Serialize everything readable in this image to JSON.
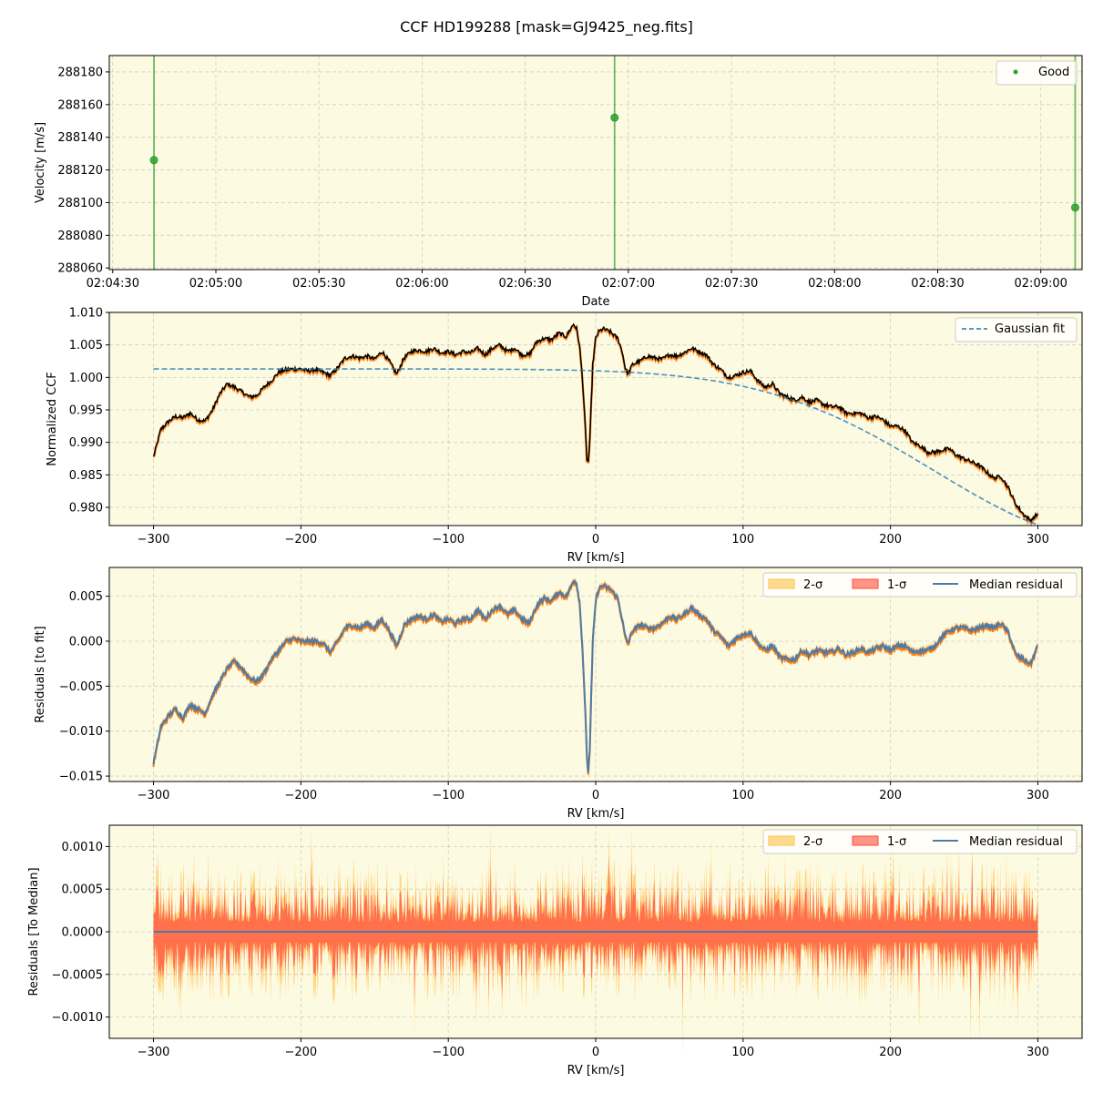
{
  "figure_title": "CCF HD199288 [mask=GJ9425_neg.fits]",
  "colors": {
    "plot_bg": "#fdfae2",
    "grid": "#b0b0b0",
    "good": "#2ca02c",
    "fit": "#1f77b4",
    "ccf_line": "#000000",
    "ccf_shadow": "#ff7f0e",
    "median_residual": "#4f7ba6",
    "band_2sigma": "#ffc34d",
    "band_1sigma": "#ff4d3a"
  },
  "chart_data": [
    {
      "type": "scatter",
      "ylabel": "Velocity [m/s]",
      "xlabel": "Date",
      "xlim": [
        "02:04:29",
        "02:09:12"
      ],
      "ylim": [
        288059,
        288190
      ],
      "xticks": [
        "02:04:30",
        "02:05:00",
        "02:05:30",
        "02:06:00",
        "02:06:30",
        "02:07:00",
        "02:07:30",
        "02:08:00",
        "02:08:30",
        "02:09:00"
      ],
      "yticks": [
        288060,
        288080,
        288100,
        288120,
        288140,
        288160,
        288180
      ],
      "grid": true,
      "legend": {
        "position": "top-right",
        "entries": [
          "Good"
        ]
      },
      "series": [
        {
          "name": "Good",
          "x": [
            "02:04:42",
            "02:06:56",
            "02:09:10"
          ],
          "y": [
            288126,
            288152,
            288097
          ],
          "error_bars": "extend beyond axis"
        }
      ]
    },
    {
      "type": "line",
      "ylabel": "Normalized CCF",
      "xlabel": "RV [km/s]",
      "xlim": [
        -330,
        330
      ],
      "ylim": [
        0.9772,
        1.01
      ],
      "xticks": [
        -300,
        -200,
        -100,
        0,
        100,
        200,
        300
      ],
      "xtick_labels": [
        "−300",
        "−200",
        "−100",
        "0",
        "100",
        "200",
        "300"
      ],
      "yticks": [
        0.98,
        0.985,
        0.99,
        0.995,
        1.0,
        1.005,
        1.01
      ],
      "ytick_labels": [
        "0.980",
        "0.985",
        "0.990",
        "0.995",
        "1.000",
        "1.005",
        "1.010"
      ],
      "grid": true,
      "legend": {
        "position": "top-right",
        "entries": [
          "Gaussian fit"
        ]
      },
      "ccf_points": [
        [
          -300,
          0.9878
        ],
        [
          -295,
          0.992
        ],
        [
          -290,
          0.9932
        ],
        [
          -285,
          0.994
        ],
        [
          -280,
          0.9938
        ],
        [
          -275,
          0.9945
        ],
        [
          -270,
          0.9935
        ],
        [
          -265,
          0.9933
        ],
        [
          -260,
          0.995
        ],
        [
          -255,
          0.9975
        ],
        [
          -250,
          0.999
        ],
        [
          -245,
          0.9985
        ],
        [
          -240,
          0.9978
        ],
        [
          -235,
          0.997
        ],
        [
          -230,
          0.9972
        ],
        [
          -225,
          0.9985
        ],
        [
          -220,
          0.9995
        ],
        [
          -215,
          1.0008
        ],
        [
          -210,
          1.0012
        ],
        [
          -205,
          1.0013
        ],
        [
          -200,
          1.0013
        ],
        [
          -195,
          1.001
        ],
        [
          -190,
          1.0012
        ],
        [
          -185,
          1.0008
        ],
        [
          -180,
          1.0003
        ],
        [
          -175,
          1.0015
        ],
        [
          -170,
          1.003
        ],
        [
          -165,
          1.0033
        ],
        [
          -160,
          1.003
        ],
        [
          -155,
          1.0033
        ],
        [
          -150,
          1.0028
        ],
        [
          -145,
          1.004
        ],
        [
          -140,
          1.0025
        ],
        [
          -135,
          1.0005
        ],
        [
          -130,
          1.003
        ],
        [
          -125,
          1.004
        ],
        [
          -120,
          1.0042
        ],
        [
          -115,
          1.004
        ],
        [
          -110,
          1.0045
        ],
        [
          -105,
          1.0038
        ],
        [
          -100,
          1.004
        ],
        [
          -95,
          1.0035
        ],
        [
          -90,
          1.004
        ],
        [
          -85,
          1.0038
        ],
        [
          -80,
          1.0045
        ],
        [
          -75,
          1.0035
        ],
        [
          -70,
          1.0045
        ],
        [
          -65,
          1.005
        ],
        [
          -60,
          1.004
        ],
        [
          -55,
          1.0045
        ],
        [
          -50,
          1.0035
        ],
        [
          -45,
          1.0035
        ],
        [
          -40,
          1.0055
        ],
        [
          -35,
          1.006
        ],
        [
          -30,
          1.0058
        ],
        [
          -25,
          1.0068
        ],
        [
          -20,
          1.0063
        ],
        [
          -17,
          1.0075
        ],
        [
          -15,
          1.0082
        ],
        [
          -13,
          1.0075
        ],
        [
          -11,
          1.005
        ],
        [
          -9,
          1.0
        ],
        [
          -7,
          0.992
        ],
        [
          -6,
          0.9875
        ],
        [
          -5,
          0.987
        ],
        [
          -4,
          0.99
        ],
        [
          -3,
          0.996
        ],
        [
          -2,
          1.002
        ],
        [
          0,
          1.006
        ],
        [
          2,
          1.007
        ],
        [
          5,
          1.0075
        ],
        [
          10,
          1.007
        ],
        [
          15,
          1.006
        ],
        [
          18,
          1.004
        ],
        [
          20,
          1.0015
        ],
        [
          22,
          1.0005
        ],
        [
          25,
          1.002
        ],
        [
          30,
          1.0025
        ],
        [
          35,
          1.0033
        ],
        [
          40,
          1.003
        ],
        [
          45,
          1.0028
        ],
        [
          50,
          1.0035
        ],
        [
          55,
          1.0033
        ],
        [
          60,
          1.0038
        ],
        [
          65,
          1.0045
        ],
        [
          70,
          1.004
        ],
        [
          75,
          1.0035
        ],
        [
          80,
          1.002
        ],
        [
          85,
          1.0012
        ],
        [
          90,
          1.0
        ],
        [
          95,
          1.0003
        ],
        [
          100,
          1.0008
        ],
        [
          105,
          1.001
        ],
        [
          110,
          0.9995
        ],
        [
          115,
          0.9985
        ],
        [
          120,
          0.999
        ],
        [
          125,
          0.9975
        ],
        [
          130,
          0.997
        ],
        [
          135,
          0.9965
        ],
        [
          140,
          0.997
        ],
        [
          145,
          0.9962
        ],
        [
          150,
          0.9965
        ],
        [
          155,
          0.9958
        ],
        [
          160,
          0.9955
        ],
        [
          165,
          0.9955
        ],
        [
          170,
          0.9945
        ],
        [
          175,
          0.9945
        ],
        [
          180,
          0.9945
        ],
        [
          185,
          0.9938
        ],
        [
          190,
          0.994
        ],
        [
          195,
          0.9935
        ],
        [
          200,
          0.9925
        ],
        [
          205,
          0.9925
        ],
        [
          210,
          0.9918
        ],
        [
          215,
          0.99
        ],
        [
          220,
          0.9895
        ],
        [
          225,
          0.9885
        ],
        [
          230,
          0.9885
        ],
        [
          235,
          0.9888
        ],
        [
          240,
          0.989
        ],
        [
          245,
          0.988
        ],
        [
          250,
          0.9875
        ],
        [
          255,
          0.987
        ],
        [
          260,
          0.9865
        ],
        [
          265,
          0.9855
        ],
        [
          270,
          0.9845
        ],
        [
          275,
          0.9848
        ],
        [
          280,
          0.983
        ],
        [
          285,
          0.9805
        ],
        [
          290,
          0.979
        ],
        [
          295,
          0.978
        ],
        [
          300,
          0.979
        ]
      ],
      "gaussian_fit": {
        "baseline": 1.0013,
        "amplitude": -0.0259,
        "center_kms": 345,
        "sigma_kms": 115
      }
    },
    {
      "type": "line",
      "ylabel": "Residuals [to fit]",
      "xlabel": "RV [km/s]",
      "xlim": [
        -330,
        330
      ],
      "ylim": [
        -0.0156,
        0.0082
      ],
      "xticks": [
        -300,
        -200,
        -100,
        0,
        100,
        200,
        300
      ],
      "xtick_labels": [
        "−300",
        "−200",
        "−100",
        "0",
        "100",
        "200",
        "300"
      ],
      "yticks": [
        -0.015,
        -0.01,
        -0.005,
        0.0,
        0.005
      ],
      "ytick_labels": [
        "−0.015",
        "−0.010",
        "−0.005",
        "0.000",
        "0.005"
      ],
      "grid": true,
      "legend": {
        "position": "top-right",
        "entries": [
          "2-σ",
          "1-σ",
          "Median residual"
        ]
      },
      "residual_points": [
        [
          -300,
          -0.0135
        ],
        [
          -295,
          -0.0095
        ],
        [
          -290,
          -0.0083
        ],
        [
          -285,
          -0.0075
        ],
        [
          -280,
          -0.0085
        ],
        [
          -275,
          -0.007
        ],
        [
          -270,
          -0.0075
        ],
        [
          -265,
          -0.008
        ],
        [
          -260,
          -0.006
        ],
        [
          -255,
          -0.0045
        ],
        [
          -250,
          -0.003
        ],
        [
          -245,
          -0.0022
        ],
        [
          -240,
          -0.003
        ],
        [
          -235,
          -0.004
        ],
        [
          -230,
          -0.0045
        ],
        [
          -225,
          -0.0035
        ],
        [
          -220,
          -0.002
        ],
        [
          -215,
          -0.001
        ],
        [
          -210,
          0.0
        ],
        [
          -205,
          0.0003
        ],
        [
          -200,
          0.0
        ],
        [
          -195,
          0.0
        ],
        [
          -190,
          0.0
        ],
        [
          -185,
          -0.0002
        ],
        [
          -180,
          -0.0012
        ],
        [
          -175,
          0.0
        ],
        [
          -170,
          0.0015
        ],
        [
          -165,
          0.0018
        ],
        [
          -160,
          0.0015
        ],
        [
          -155,
          0.002
        ],
        [
          -150,
          0.0015
        ],
        [
          -145,
          0.0025
        ],
        [
          -140,
          0.0012
        ],
        [
          -135,
          -0.0005
        ],
        [
          -130,
          0.0018
        ],
        [
          -125,
          0.0025
        ],
        [
          -120,
          0.0028
        ],
        [
          -115,
          0.0025
        ],
        [
          -110,
          0.003
        ],
        [
          -105,
          0.0022
        ],
        [
          -100,
          0.0025
        ],
        [
          -95,
          0.002
        ],
        [
          -90,
          0.0025
        ],
        [
          -85,
          0.0025
        ],
        [
          -80,
          0.0035
        ],
        [
          -75,
          0.0025
        ],
        [
          -70,
          0.0035
        ],
        [
          -65,
          0.004
        ],
        [
          -60,
          0.003
        ],
        [
          -55,
          0.0035
        ],
        [
          -50,
          0.0025
        ],
        [
          -45,
          0.002
        ],
        [
          -40,
          0.004
        ],
        [
          -35,
          0.0048
        ],
        [
          -30,
          0.0045
        ],
        [
          -25,
          0.0055
        ],
        [
          -20,
          0.005
        ],
        [
          -17,
          0.006
        ],
        [
          -15,
          0.0068
        ],
        [
          -13,
          0.0065
        ],
        [
          -11,
          0.0045
        ],
        [
          -9,
          -0.0005
        ],
        [
          -7,
          -0.008
        ],
        [
          -6,
          -0.0128
        ],
        [
          -5,
          -0.0145
        ],
        [
          -4,
          -0.012
        ],
        [
          -3,
          -0.006
        ],
        [
          -2,
          0.0
        ],
        [
          0,
          0.0045
        ],
        [
          2,
          0.0058
        ],
        [
          5,
          0.0062
        ],
        [
          10,
          0.0058
        ],
        [
          15,
          0.0048
        ],
        [
          18,
          0.0025
        ],
        [
          20,
          0.0005
        ],
        [
          22,
          -0.0002
        ],
        [
          25,
          0.0012
        ],
        [
          30,
          0.0018
        ],
        [
          35,
          0.0015
        ],
        [
          40,
          0.0015
        ],
        [
          45,
          0.002
        ],
        [
          50,
          0.0028
        ],
        [
          55,
          0.0025
        ],
        [
          60,
          0.003
        ],
        [
          65,
          0.0038
        ],
        [
          70,
          0.003
        ],
        [
          75,
          0.0025
        ],
        [
          80,
          0.0012
        ],
        [
          85,
          0.0005
        ],
        [
          90,
          -0.0005
        ],
        [
          95,
          0.0003
        ],
        [
          100,
          0.0008
        ],
        [
          105,
          0.001
        ],
        [
          110,
          -0.0002
        ],
        [
          115,
          -0.001
        ],
        [
          120,
          -0.0005
        ],
        [
          125,
          -0.0018
        ],
        [
          130,
          -0.002
        ],
        [
          135,
          -0.002
        ],
        [
          140,
          -0.001
        ],
        [
          145,
          -0.0015
        ],
        [
          150,
          -0.001
        ],
        [
          155,
          -0.0012
        ],
        [
          160,
          -0.0012
        ],
        [
          165,
          -0.0008
        ],
        [
          170,
          -0.0015
        ],
        [
          175,
          -0.0012
        ],
        [
          180,
          -0.0008
        ],
        [
          185,
          -0.0012
        ],
        [
          190,
          -0.0008
        ],
        [
          195,
          -0.0005
        ],
        [
          200,
          -0.001
        ],
        [
          205,
          -0.0005
        ],
        [
          210,
          -0.0005
        ],
        [
          215,
          -0.0012
        ],
        [
          220,
          -0.001
        ],
        [
          225,
          -0.001
        ],
        [
          230,
          -0.0005
        ],
        [
          235,
          0.0005
        ],
        [
          240,
          0.0012
        ],
        [
          245,
          0.0015
        ],
        [
          250,
          0.0015
        ],
        [
          255,
          0.0012
        ],
        [
          260,
          0.0015
        ],
        [
          265,
          0.0018
        ],
        [
          270,
          0.0015
        ],
        [
          275,
          0.002
        ],
        [
          280,
          0.001
        ],
        [
          285,
          -0.0015
        ],
        [
          290,
          -0.002
        ],
        [
          295,
          -0.0025
        ],
        [
          300,
          -0.0005
        ]
      ]
    },
    {
      "type": "area",
      "ylabel": "Residuals [To Median]",
      "xlabel": "RV [km/s]",
      "xlim": [
        -330,
        330
      ],
      "ylim": [
        -0.00125,
        0.00125
      ],
      "xticks": [
        -300,
        -200,
        -100,
        0,
        100,
        200,
        300
      ],
      "xtick_labels": [
        "−300",
        "−200",
        "−100",
        "0",
        "100",
        "200",
        "300"
      ],
      "yticks": [
        -0.001,
        -0.0005,
        0.0,
        0.0005,
        0.001
      ],
      "ytick_labels": [
        "−0.0010",
        "−0.0005",
        "0.0000",
        "0.0005",
        "0.0010"
      ],
      "grid": true,
      "legend": {
        "position": "top-right",
        "entries": [
          "2-σ",
          "1-σ",
          "Median residual"
        ]
      },
      "band_amplitude": {
        "one_sigma_typical": 0.0003,
        "two_sigma_typical": 0.0005,
        "peak": 0.00115
      },
      "median_value": 0.0
    }
  ]
}
